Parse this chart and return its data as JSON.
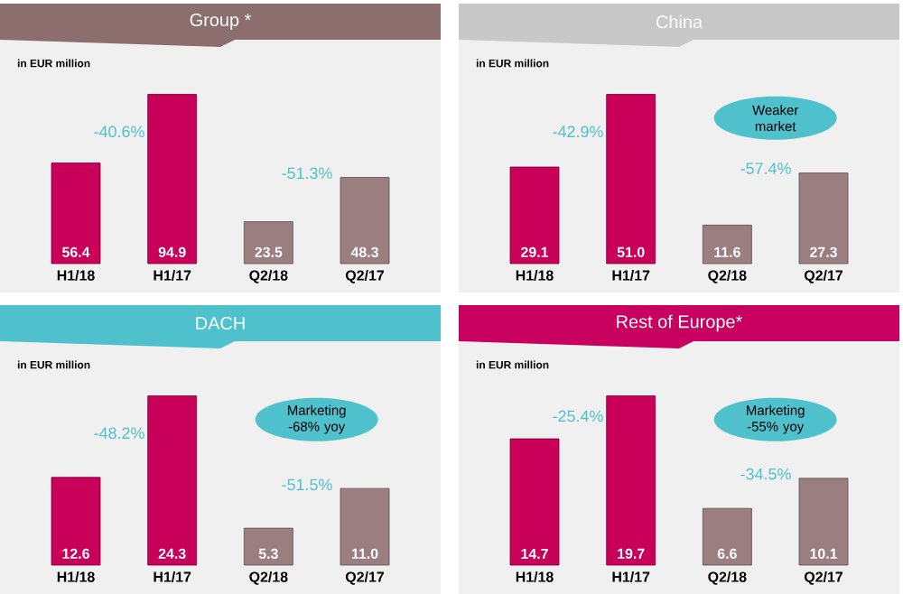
{
  "chart_data": [
    {
      "type": "bar",
      "title": "Group *",
      "subtitle": "in EUR million",
      "categories": [
        "H1/18",
        "H1/17",
        "Q2/18",
        "Q2/17"
      ],
      "values": [
        56.4,
        94.9,
        23.5,
        48.3
      ],
      "colors": [
        "#c8005a",
        "#c8005a",
        "#9b7f80",
        "#9b7f80"
      ],
      "value_labels": [
        "56.4",
        "94.9",
        "23.5",
        "48.3"
      ],
      "annotations": [
        "-40.6%",
        "-51.3%"
      ]
    },
    {
      "type": "bar",
      "title": "China",
      "subtitle": "in EUR million",
      "categories": [
        "H1/18",
        "H1/17",
        "Q2/18",
        "Q2/17"
      ],
      "values": [
        29.1,
        51.0,
        11.6,
        27.3
      ],
      "colors": [
        "#c8005a",
        "#c8005a",
        "#9b7f80",
        "#9b7f80"
      ],
      "value_labels": [
        "29.1",
        "51.0",
        "11.6",
        "27.3"
      ],
      "annotations": [
        "-42.9%",
        "-57.4%",
        "Weaker market"
      ]
    },
    {
      "type": "bar",
      "title": "DACH",
      "subtitle": "in EUR million",
      "categories": [
        "H1/18",
        "H1/17",
        "Q2/18",
        "Q2/17"
      ],
      "values": [
        12.6,
        24.3,
        5.3,
        11.0
      ],
      "colors": [
        "#c8005a",
        "#c8005a",
        "#9b7f80",
        "#9b7f80"
      ],
      "value_labels": [
        "12.6",
        "24.3",
        "5.3",
        "11.0"
      ],
      "annotations": [
        "-48.2%",
        "-51.5%",
        "Marketing -68% yoy"
      ]
    },
    {
      "type": "bar",
      "title": "Rest of Europe*",
      "subtitle": "in EUR million",
      "categories": [
        "H1/18",
        "H1/17",
        "Q2/18",
        "Q2/17"
      ],
      "values": [
        14.7,
        19.7,
        6.6,
        10.1
      ],
      "colors": [
        "#c8005a",
        "#c8005a",
        "#9b7f80",
        "#9b7f80"
      ],
      "value_labels": [
        "14.7",
        "19.7",
        "6.6",
        "10.1"
      ],
      "annotations": [
        "-25.4%",
        "-34.5%",
        "Marketing -55% yoy"
      ]
    }
  ]
}
